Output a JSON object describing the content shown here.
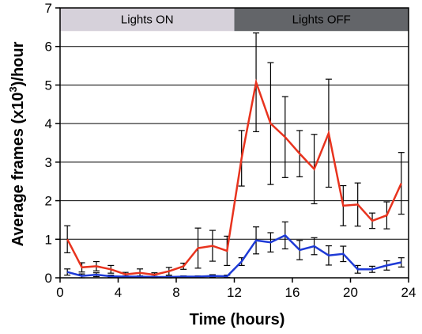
{
  "chart_data": {
    "type": "line",
    "xlabel": "Time (hours)",
    "ylabel": "Average frames (x10",
    "ylabel_sup": "3",
    "ylabel_tail": ")/hour",
    "xlim": [
      0,
      24
    ],
    "ylim": [
      0,
      7
    ],
    "xticks": [
      0,
      4,
      8,
      12,
      16,
      20,
      24
    ],
    "yticks": [
      0,
      1,
      2,
      3,
      4,
      5,
      6,
      7
    ],
    "grid": "horizontal",
    "bands": [
      {
        "label": "Lights ON",
        "start": 0,
        "end": 12,
        "color": "#d6d1da"
      },
      {
        "label": "Lights OFF",
        "start": 12,
        "end": 24,
        "color": "#636569"
      }
    ],
    "series": [
      {
        "color": "#e8331e",
        "points": [
          {
            "x": 0.5,
            "y": 1.0,
            "err": 0.35
          },
          {
            "x": 1.5,
            "y": 0.27,
            "err": 0.12
          },
          {
            "x": 2.5,
            "y": 0.3,
            "err": 0.12
          },
          {
            "x": 3.5,
            "y": 0.22,
            "err": 0.1
          },
          {
            "x": 4.5,
            "y": 0.09,
            "err": 0.05
          },
          {
            "x": 5.5,
            "y": 0.13,
            "err": 0.1
          },
          {
            "x": 6.5,
            "y": 0.08,
            "err": 0.05
          },
          {
            "x": 7.5,
            "y": 0.17,
            "err": 0.1
          },
          {
            "x": 8.5,
            "y": 0.3,
            "err": 0.08
          },
          {
            "x": 9.5,
            "y": 0.77,
            "err": 0.52
          },
          {
            "x": 10.5,
            "y": 0.83,
            "err": 0.4
          },
          {
            "x": 11.5,
            "y": 0.7,
            "err": 0.38
          },
          {
            "x": 12.5,
            "y": 3.1,
            "err": 0.72
          },
          {
            "x": 13.5,
            "y": 5.07,
            "err": 1.28
          },
          {
            "x": 14.5,
            "y": 4.0,
            "err": 1.58
          },
          {
            "x": 15.5,
            "y": 3.65,
            "err": 1.05
          },
          {
            "x": 16.5,
            "y": 3.22,
            "err": 0.6
          },
          {
            "x": 17.5,
            "y": 2.82,
            "err": 0.9
          },
          {
            "x": 18.5,
            "y": 3.75,
            "err": 1.4
          },
          {
            "x": 19.5,
            "y": 1.87,
            "err": 0.52
          },
          {
            "x": 20.5,
            "y": 1.9,
            "err": 0.56
          },
          {
            "x": 21.5,
            "y": 1.48,
            "err": 0.2
          },
          {
            "x": 22.5,
            "y": 1.62,
            "err": 0.35
          },
          {
            "x": 23.5,
            "y": 2.45,
            "err": 0.8
          }
        ]
      },
      {
        "color": "#1e3ad6",
        "points": [
          {
            "x": 0.5,
            "y": 0.15,
            "err": 0.08
          },
          {
            "x": 1.5,
            "y": 0.05,
            "err": 0.05
          },
          {
            "x": 2.5,
            "y": 0.08,
            "err": 0.05
          },
          {
            "x": 3.5,
            "y": 0.04,
            "err": 0.03
          },
          {
            "x": 4.5,
            "y": 0.03,
            "err": 0.02
          },
          {
            "x": 5.5,
            "y": 0.03,
            "err": 0.02
          },
          {
            "x": 6.5,
            "y": 0.02,
            "err": 0.02
          },
          {
            "x": 7.5,
            "y": 0.02,
            "err": 0.02
          },
          {
            "x": 8.5,
            "y": 0.03,
            "err": 0.02
          },
          {
            "x": 9.5,
            "y": 0.03,
            "err": 0.02
          },
          {
            "x": 10.5,
            "y": 0.05,
            "err": 0.03
          },
          {
            "x": 11.5,
            "y": 0.04,
            "err": 0.03
          },
          {
            "x": 12.5,
            "y": 0.42,
            "err": 0.1
          },
          {
            "x": 13.5,
            "y": 0.97,
            "err": 0.35
          },
          {
            "x": 14.5,
            "y": 0.92,
            "err": 0.25
          },
          {
            "x": 15.5,
            "y": 1.1,
            "err": 0.35
          },
          {
            "x": 16.5,
            "y": 0.72,
            "err": 0.25
          },
          {
            "x": 17.5,
            "y": 0.82,
            "err": 0.22
          },
          {
            "x": 18.5,
            "y": 0.58,
            "err": 0.25
          },
          {
            "x": 19.5,
            "y": 0.62,
            "err": 0.2
          },
          {
            "x": 20.5,
            "y": 0.22,
            "err": 0.1
          },
          {
            "x": 21.5,
            "y": 0.22,
            "err": 0.08
          },
          {
            "x": 22.5,
            "y": 0.32,
            "err": 0.12
          },
          {
            "x": 23.5,
            "y": 0.4,
            "err": 0.12
          }
        ]
      }
    ]
  }
}
